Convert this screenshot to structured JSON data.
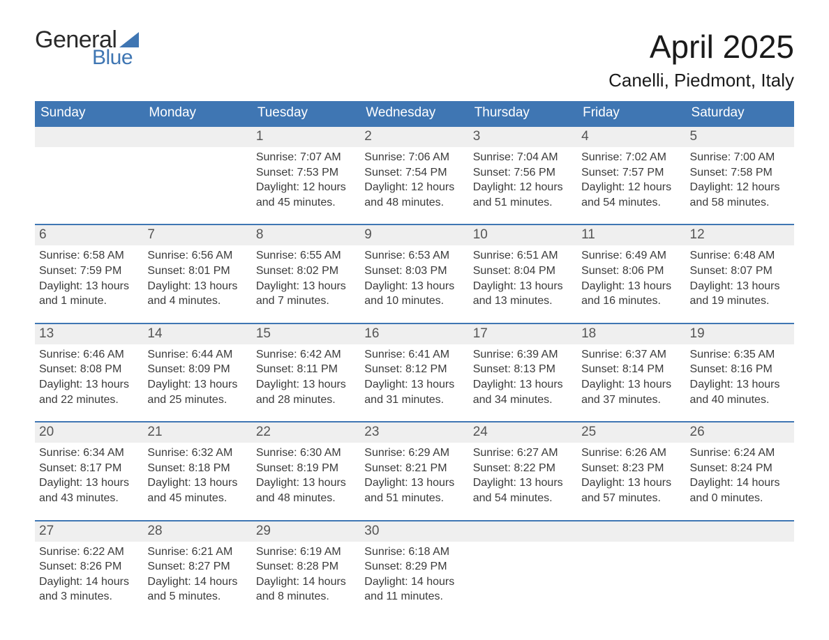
{
  "logo": {
    "general": "General",
    "blue": "Blue",
    "shape_color": "#3f76b3"
  },
  "title": "April 2025",
  "location": "Canelli, Piedmont, Italy",
  "colors": {
    "header_bg": "#3f76b3",
    "header_text": "#ffffff",
    "daynum_bg": "#efefef",
    "daynum_border": "#3f76b3",
    "body_text": "#3a3a3a",
    "daynum_text": "#555555",
    "page_bg": "#ffffff"
  },
  "days_of_week": [
    "Sunday",
    "Monday",
    "Tuesday",
    "Wednesday",
    "Thursday",
    "Friday",
    "Saturday"
  ],
  "weeks": [
    {
      "nums": [
        "",
        "",
        "1",
        "2",
        "3",
        "4",
        "5"
      ],
      "cells": [
        "",
        "",
        "Sunrise: 7:07 AM\nSunset: 7:53 PM\nDaylight: 12 hours and 45 minutes.",
        "Sunrise: 7:06 AM\nSunset: 7:54 PM\nDaylight: 12 hours and 48 minutes.",
        "Sunrise: 7:04 AM\nSunset: 7:56 PM\nDaylight: 12 hours and 51 minutes.",
        "Sunrise: 7:02 AM\nSunset: 7:57 PM\nDaylight: 12 hours and 54 minutes.",
        "Sunrise: 7:00 AM\nSunset: 7:58 PM\nDaylight: 12 hours and 58 minutes."
      ]
    },
    {
      "nums": [
        "6",
        "7",
        "8",
        "9",
        "10",
        "11",
        "12"
      ],
      "cells": [
        "Sunrise: 6:58 AM\nSunset: 7:59 PM\nDaylight: 13 hours and 1 minute.",
        "Sunrise: 6:56 AM\nSunset: 8:01 PM\nDaylight: 13 hours and 4 minutes.",
        "Sunrise: 6:55 AM\nSunset: 8:02 PM\nDaylight: 13 hours and 7 minutes.",
        "Sunrise: 6:53 AM\nSunset: 8:03 PM\nDaylight: 13 hours and 10 minutes.",
        "Sunrise: 6:51 AM\nSunset: 8:04 PM\nDaylight: 13 hours and 13 minutes.",
        "Sunrise: 6:49 AM\nSunset: 8:06 PM\nDaylight: 13 hours and 16 minutes.",
        "Sunrise: 6:48 AM\nSunset: 8:07 PM\nDaylight: 13 hours and 19 minutes."
      ]
    },
    {
      "nums": [
        "13",
        "14",
        "15",
        "16",
        "17",
        "18",
        "19"
      ],
      "cells": [
        "Sunrise: 6:46 AM\nSunset: 8:08 PM\nDaylight: 13 hours and 22 minutes.",
        "Sunrise: 6:44 AM\nSunset: 8:09 PM\nDaylight: 13 hours and 25 minutes.",
        "Sunrise: 6:42 AM\nSunset: 8:11 PM\nDaylight: 13 hours and 28 minutes.",
        "Sunrise: 6:41 AM\nSunset: 8:12 PM\nDaylight: 13 hours and 31 minutes.",
        "Sunrise: 6:39 AM\nSunset: 8:13 PM\nDaylight: 13 hours and 34 minutes.",
        "Sunrise: 6:37 AM\nSunset: 8:14 PM\nDaylight: 13 hours and 37 minutes.",
        "Sunrise: 6:35 AM\nSunset: 8:16 PM\nDaylight: 13 hours and 40 minutes."
      ]
    },
    {
      "nums": [
        "20",
        "21",
        "22",
        "23",
        "24",
        "25",
        "26"
      ],
      "cells": [
        "Sunrise: 6:34 AM\nSunset: 8:17 PM\nDaylight: 13 hours and 43 minutes.",
        "Sunrise: 6:32 AM\nSunset: 8:18 PM\nDaylight: 13 hours and 45 minutes.",
        "Sunrise: 6:30 AM\nSunset: 8:19 PM\nDaylight: 13 hours and 48 minutes.",
        "Sunrise: 6:29 AM\nSunset: 8:21 PM\nDaylight: 13 hours and 51 minutes.",
        "Sunrise: 6:27 AM\nSunset: 8:22 PM\nDaylight: 13 hours and 54 minutes.",
        "Sunrise: 6:26 AM\nSunset: 8:23 PM\nDaylight: 13 hours and 57 minutes.",
        "Sunrise: 6:24 AM\nSunset: 8:24 PM\nDaylight: 14 hours and 0 minutes."
      ]
    },
    {
      "nums": [
        "27",
        "28",
        "29",
        "30",
        "",
        "",
        ""
      ],
      "cells": [
        "Sunrise: 6:22 AM\nSunset: 8:26 PM\nDaylight: 14 hours and 3 minutes.",
        "Sunrise: 6:21 AM\nSunset: 8:27 PM\nDaylight: 14 hours and 5 minutes.",
        "Sunrise: 6:19 AM\nSunset: 8:28 PM\nDaylight: 14 hours and 8 minutes.",
        "Sunrise: 6:18 AM\nSunset: 8:29 PM\nDaylight: 14 hours and 11 minutes.",
        "",
        "",
        ""
      ]
    }
  ]
}
